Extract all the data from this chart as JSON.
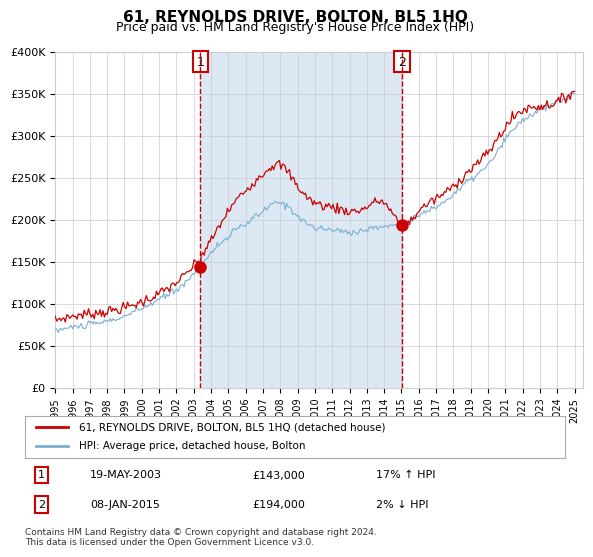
{
  "title": "61, REYNOLDS DRIVE, BOLTON, BL5 1HQ",
  "subtitle": "Price paid vs. HM Land Registry's House Price Index (HPI)",
  "legend_property": "61, REYNOLDS DRIVE, BOLTON, BL5 1HQ (detached house)",
  "legend_hpi": "HPI: Average price, detached house, Bolton",
  "transaction1_date": "19-MAY-2003",
  "transaction1_price": 143000,
  "transaction1_hpi_pct": "17% ↑ HPI",
  "transaction2_date": "08-JAN-2015",
  "transaction2_price": 194000,
  "transaction2_hpi_pct": "2% ↓ HPI",
  "footer": "Contains HM Land Registry data © Crown copyright and database right 2024.\nThis data is licensed under the Open Government Licence v3.0.",
  "ylim": [
    0,
    400000
  ],
  "yticks": [
    0,
    50000,
    100000,
    150000,
    200000,
    250000,
    300000,
    350000,
    400000
  ],
  "property_color": "#cc0000",
  "hpi_color": "#7ab0d4",
  "shading_color": "#dce9f5",
  "dot_color": "#cc0000",
  "dashed_line_color": "#cc0000",
  "background_color": "#ffffff",
  "grid_color": "#cccccc",
  "t1_year": 2003.38,
  "t2_year": 2015.03
}
